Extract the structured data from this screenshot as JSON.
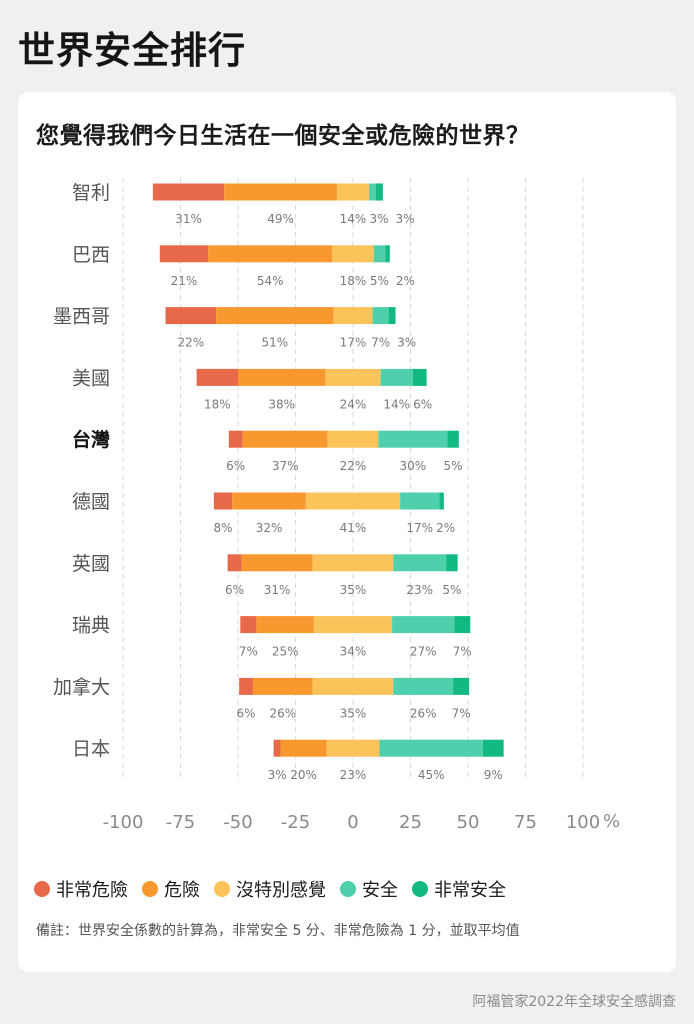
{
  "page_title": "世界安全排行",
  "source": "阿福管家2022年全球安全感調查",
  "note": "備註：世界安全係數的計算為，非常安全 5 分、非常危險為 1 分，並取平均值",
  "colors": {
    "very_dangerous": "#e8684a",
    "dangerous": "#f9982e",
    "neutral": "#fbc35a",
    "safe": "#4fcfac",
    "very_safe": "#12b983",
    "highlight_label": "#111111",
    "label": "#555555"
  },
  "chart_data": {
    "type": "bar",
    "orientation": "horizontal",
    "stacked": "diverging",
    "title": "您覺得我們今日生活在一個安全或危險的世界？",
    "categories": [
      "智利",
      "巴西",
      "墨西哥",
      "美國",
      "台灣",
      "德國",
      "英國",
      "瑞典",
      "加拿大",
      "日本"
    ],
    "highlight": "台灣",
    "series": [
      {
        "name": "非常危險",
        "key": "very_dangerous",
        "values": [
          31,
          21,
          22,
          18,
          6,
          8,
          6,
          7,
          6,
          3
        ]
      },
      {
        "name": "危險",
        "key": "dangerous",
        "values": [
          49,
          54,
          51,
          38,
          37,
          32,
          31,
          25,
          26,
          20
        ]
      },
      {
        "name": "沒特別感覺",
        "key": "neutral",
        "values": [
          14,
          18,
          17,
          24,
          22,
          41,
          35,
          34,
          35,
          23
        ]
      },
      {
        "name": "安全",
        "key": "safe",
        "values": [
          3,
          5,
          7,
          14,
          30,
          17,
          23,
          27,
          26,
          45
        ]
      },
      {
        "name": "非常安全",
        "key": "very_safe",
        "values": [
          3,
          2,
          3,
          6,
          5,
          2,
          5,
          7,
          7,
          9
        ]
      }
    ],
    "x_ticks": [
      -100,
      -75,
      -50,
      -25,
      0,
      25,
      50,
      75,
      100
    ],
    "x_unit": "%",
    "xlim": [
      -100,
      100
    ],
    "grid": "vertical-dashed",
    "legend_position": "bottom"
  }
}
